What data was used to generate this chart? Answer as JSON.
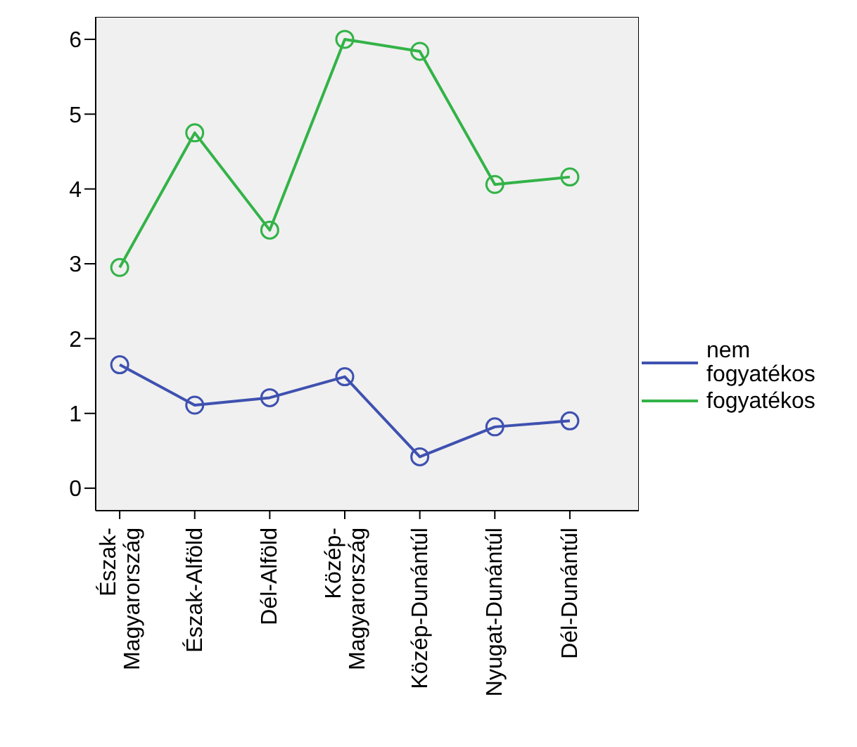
{
  "chart_data": {
    "type": "line",
    "categories": [
      "Észak-Magyarország",
      "Észak-Alföld",
      "Dél-Alföld",
      "Közép-Magyarország",
      "Közép-Dunántúl",
      "Nyugat-Dunántúl",
      "Dél-Dunántúl"
    ],
    "series": [
      {
        "name": "nem fogyatékos",
        "color": "#3f51b0",
        "values": [
          1.65,
          1.11,
          1.21,
          1.49,
          0.42,
          0.82,
          0.9
        ]
      },
      {
        "name": "fogyatékos",
        "color": "#33b347",
        "values": [
          2.95,
          4.75,
          3.45,
          6.0,
          5.84,
          4.06,
          4.16
        ]
      }
    ],
    "ylim": [
      -0.3,
      6.3
    ],
    "yticks": [
      0,
      1,
      2,
      3,
      4,
      5,
      6
    ],
    "legend": "right",
    "marker": "circle",
    "line_style": "solid"
  }
}
